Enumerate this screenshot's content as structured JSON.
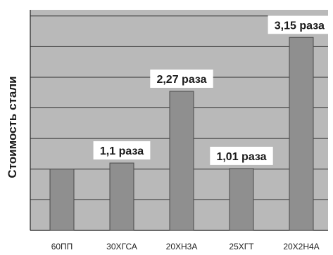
{
  "chart_data": {
    "type": "bar",
    "ylabel": "Стоимость стали",
    "categories": [
      "60ПП",
      "30ХГСА",
      "20ХН3А",
      "25ХГТ",
      "20Х2Н4А"
    ],
    "values": [
      1.0,
      1.1,
      2.27,
      1.01,
      3.15
    ],
    "data_labels": [
      "",
      "1,1 раза",
      "2,27 раза",
      "1,01 раза",
      "3,15 раза"
    ],
    "ylim": [
      0,
      3.6
    ],
    "grid": true,
    "colors": {
      "plot_background": "#b9b9b9",
      "bar_fill": "#8f8f8f",
      "bar_stroke": "#4a4a4a",
      "grid": "#2e2e2e",
      "label_box": "#ffffff"
    }
  }
}
